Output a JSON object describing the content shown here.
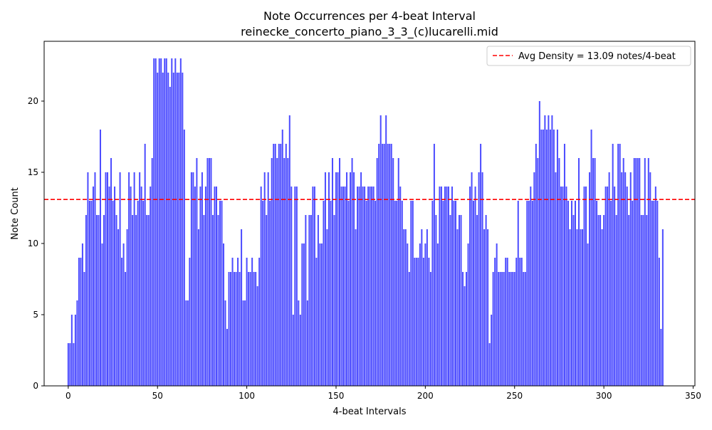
{
  "chart_data": {
    "type": "bar",
    "title": "Note Occurrences per 4-beat Interval",
    "subtitle": "reinecke_concerto_piano_3_3_(c)lucarelli.mid",
    "xlabel": "4-beat Intervals",
    "ylabel": "Note Count",
    "xlim": [
      -13.5,
      351
    ],
    "ylim": [
      0,
      24.2
    ],
    "x_ticks": [
      0,
      50,
      100,
      150,
      200,
      250,
      300,
      350
    ],
    "y_ticks": [
      0,
      5,
      10,
      15,
      20
    ],
    "grid": false,
    "bar_color": "#0000ff",
    "bar_alpha": 0.7,
    "avg_line": {
      "value": 13.09,
      "color": "#ff0000",
      "label": "Avg Density = 13.09 notes/4-beat"
    },
    "legend_position": "top-right",
    "values": [
      3,
      3,
      5,
      3,
      5,
      6,
      9,
      9,
      10,
      8,
      12,
      15,
      13,
      13,
      14,
      15,
      12,
      12,
      18,
      10,
      12,
      15,
      15,
      14,
      16,
      13,
      14,
      12,
      11,
      15,
      9,
      10,
      8,
      11,
      15,
      14,
      12,
      15,
      12,
      13,
      15,
      14,
      13,
      17,
      12,
      12,
      14,
      16,
      23,
      23,
      22,
      23,
      23,
      22,
      23,
      23,
      22,
      21,
      23,
      22,
      23,
      22,
      22,
      23,
      22,
      18,
      6,
      6,
      9,
      15,
      15,
      14,
      16,
      11,
      14,
      15,
      12,
      14,
      16,
      16,
      16,
      12,
      14,
      14,
      12,
      13,
      13,
      10,
      6,
      4,
      8,
      8,
      9,
      8,
      8,
      9,
      8,
      11,
      6,
      6,
      9,
      8,
      8,
      9,
      8,
      8,
      7,
      9,
      14,
      13,
      15,
      12,
      15,
      13,
      16,
      17,
      17,
      16,
      17,
      17,
      18,
      16,
      17,
      16,
      19,
      14,
      5,
      14,
      14,
      6,
      5,
      10,
      10,
      12,
      6,
      12,
      12,
      14,
      14,
      9,
      12,
      10,
      10,
      13,
      15,
      11,
      15,
      13,
      16,
      12,
      15,
      15,
      16,
      14,
      14,
      14,
      15,
      13,
      15,
      16,
      15,
      11,
      14,
      14,
      15,
      14,
      14,
      13,
      14,
      14,
      14,
      14,
      13,
      16,
      17,
      19,
      17,
      17,
      19,
      17,
      17,
      17,
      16,
      13,
      13,
      16,
      14,
      13,
      11,
      11,
      10,
      8,
      13,
      13,
      9,
      9,
      9,
      10,
      11,
      9,
      10,
      11,
      9,
      8,
      13,
      17,
      12,
      10,
      14,
      14,
      13,
      14,
      14,
      14,
      12,
      14,
      13,
      13,
      11,
      12,
      12,
      8,
      7,
      8,
      10,
      14,
      15,
      13,
      14,
      12,
      15,
      17,
      15,
      11,
      12,
      11,
      3,
      5,
      8,
      9,
      10,
      8,
      8,
      8,
      8,
      9,
      9,
      8,
      8,
      8,
      8,
      9,
      13,
      9,
      9,
      8,
      8,
      13,
      13,
      14,
      13,
      15,
      17,
      16,
      20,
      18,
      18,
      19,
      18,
      19,
      18,
      19,
      18,
      15,
      18,
      16,
      14,
      14,
      17,
      14,
      13,
      11,
      13,
      12,
      13,
      11,
      16,
      11,
      11,
      14,
      14,
      10,
      15,
      18,
      16,
      16,
      13,
      12,
      12,
      11,
      12,
      14,
      14,
      15,
      13,
      17,
      14,
      12,
      17,
      17,
      15,
      16,
      15,
      14,
      12,
      15,
      13,
      16,
      16,
      16,
      16,
      12,
      12,
      16,
      12,
      16,
      15,
      13,
      13,
      14,
      13,
      9,
      4,
      11
    ]
  }
}
